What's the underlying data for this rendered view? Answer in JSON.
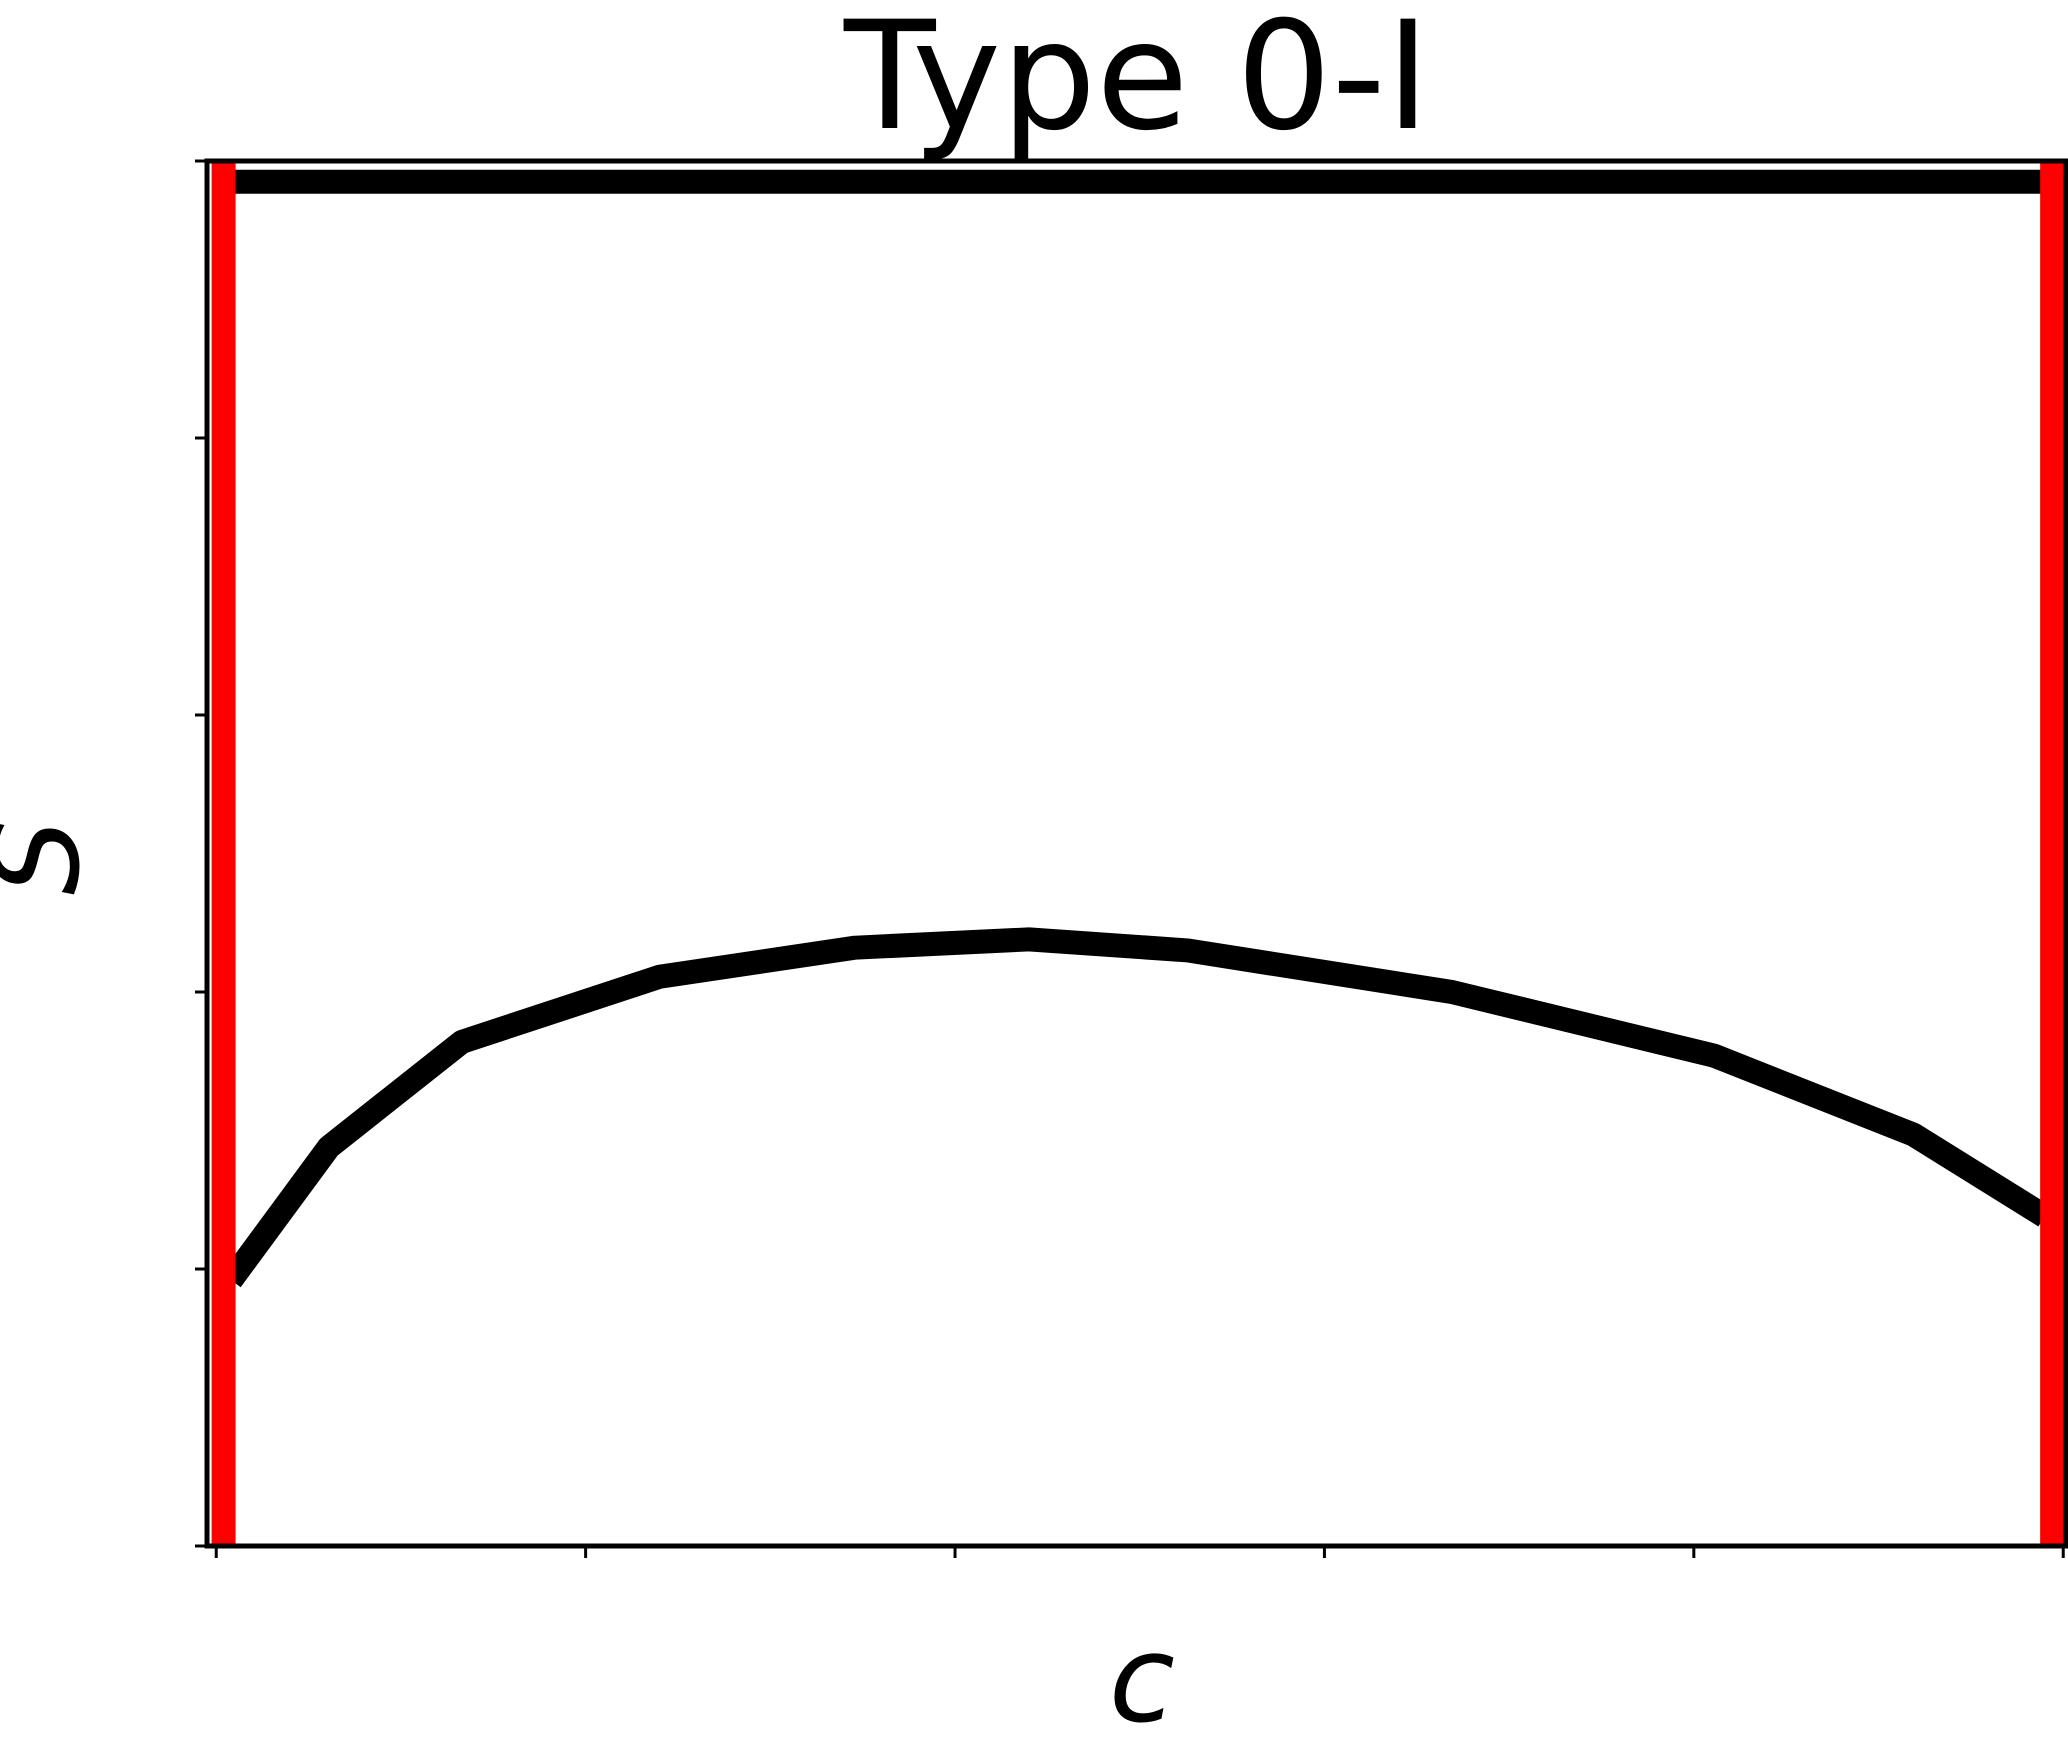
{
  "chart_data": {
    "type": "line",
    "title": "Type 0-I",
    "xlabel": "c",
    "ylabel": "S",
    "xlim": [
      -0.005,
      1.0015
    ],
    "ylim": [
      0,
      1
    ],
    "xticks": [
      0,
      0.2,
      0.4,
      0.6,
      0.8,
      1.0
    ],
    "yticks": [
      0,
      0.2,
      0.4,
      0.6,
      0.8,
      1.0
    ],
    "grid": false,
    "series": [
      {
        "color": "#000000",
        "x": [
          0.008,
          0.061,
          0.133,
          0.24,
          0.346,
          0.44,
          0.526,
          0.669,
          0.811,
          0.919,
          0.99
        ],
        "values": [
          0.192,
          0.288,
          0.364,
          0.411,
          0.432,
          0.438,
          0.43,
          0.4,
          0.354,
          0.297,
          0.238
        ]
      },
      {
        "color": "#000000",
        "x": [
          0.008,
          0.995
        ],
        "values": [
          0.985,
          0.985
        ]
      },
      {
        "color": "#ff0000",
        "x": [
          0.004,
          0.004
        ],
        "values": [
          0,
          1
        ]
      },
      {
        "color": "#ff0000",
        "x": [
          0.994,
          0.994
        ],
        "values": [
          0,
          1
        ]
      }
    ]
  }
}
